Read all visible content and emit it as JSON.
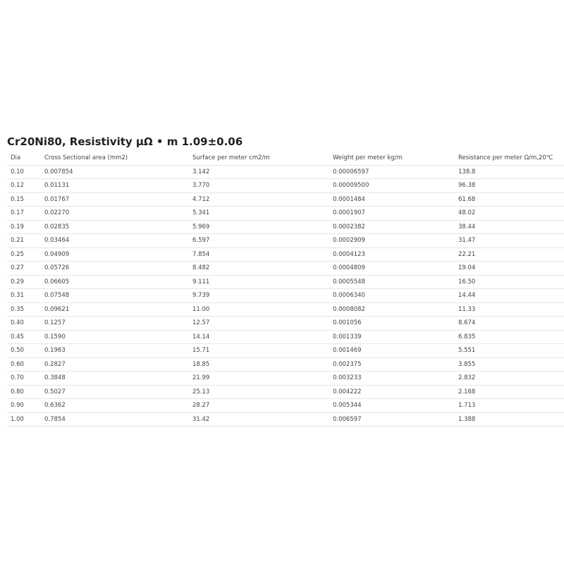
{
  "title": "Cr20Ni80, Resistivity μΩ • m 1.09±0.06",
  "table": {
    "headers": [
      "Dia",
      "Cross Sectional area (mm2)",
      "Surface per meter cm2/m",
      "Weight per meter kg/m",
      "Resistance per meter Ω/m,20℃"
    ],
    "rows": [
      [
        "0.10",
        "0.007854",
        "3.142",
        "0.00006597",
        "138.8"
      ],
      [
        "0.12",
        "0.01131",
        "3.770",
        "0.00009500",
        "96.38"
      ],
      [
        "0.15",
        "0.01767",
        "4.712",
        "0.0001484",
        "61.68"
      ],
      [
        "0.17",
        "0.02270",
        "5.341",
        "0.0001907",
        "48.02"
      ],
      [
        "0.19",
        "0.02835",
        "5.969",
        "0.0002382",
        "38.44"
      ],
      [
        "0.21",
        "0.03464",
        "6.597",
        "0.0002909",
        "31.47"
      ],
      [
        "0.25",
        "0.04909",
        "7.854",
        "0.0004123",
        "22.21"
      ],
      [
        "0.27",
        "0.05726",
        "8.482",
        "0.0004809",
        "19.04"
      ],
      [
        "0.29",
        "0.06605",
        "9.111",
        "0.0005548",
        "16.50"
      ],
      [
        "0.31",
        "0.07548",
        "9.739",
        "0.0006340",
        "14.44"
      ],
      [
        "0.35",
        "0.09621",
        "11.00",
        "0.0008082",
        "11.33"
      ],
      [
        "0.40",
        "0.1257",
        "12.57",
        "0.001056",
        "8.674"
      ],
      [
        "0.45",
        "0.1590",
        "14.14",
        "0.001339",
        "6.835"
      ],
      [
        "0.50",
        "0.1963",
        "15.71",
        "0.001469",
        "5.551"
      ],
      [
        "0.60",
        "0.2827",
        "18.85",
        "0.002375",
        "3.855"
      ],
      [
        "0.70",
        "0.3848",
        "21.99",
        "0.003233",
        "2.832"
      ],
      [
        "0.80",
        "0.5027",
        "25.13",
        "0.004222",
        "2.168"
      ],
      [
        "0.90",
        "0.6362",
        "28.27",
        "0.005344",
        "1.713"
      ],
      [
        "1.00",
        "0.7854",
        "31.42",
        "0.006597",
        "1.388"
      ]
    ]
  }
}
